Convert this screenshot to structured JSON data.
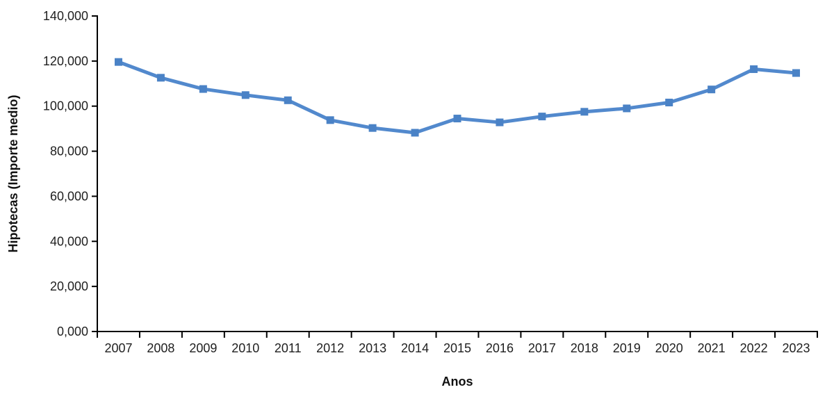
{
  "chart_data": {
    "type": "line",
    "title": "",
    "xlabel": "Anos",
    "ylabel": "Hipotecas (Importe medio)",
    "categories": [
      "2007",
      "2008",
      "2009",
      "2010",
      "2011",
      "2012",
      "2013",
      "2014",
      "2015",
      "2016",
      "2017",
      "2018",
      "2019",
      "2020",
      "2021",
      "2022",
      "2023"
    ],
    "values": [
      119600,
      112600,
      107600,
      104900,
      102600,
      93800,
      90300,
      88200,
      94500,
      92800,
      95400,
      97500,
      99000,
      101600,
      107400,
      116400,
      114700
    ],
    "ylim": [
      0,
      140000
    ],
    "ytick_values": [
      0,
      20000,
      40000,
      60000,
      80000,
      100000,
      120000,
      140000
    ],
    "ytick_labels": [
      "0,000",
      "20,000",
      "40,000",
      "60,000",
      "80,000",
      "100,000",
      "120,000",
      "140,000"
    ],
    "grid": false,
    "legend": "none",
    "colors": {
      "line": "#5289cd",
      "marker_fill": "#4a82c6",
      "axis": "#000000",
      "text": "#1f1f1f"
    },
    "marker": "square"
  }
}
